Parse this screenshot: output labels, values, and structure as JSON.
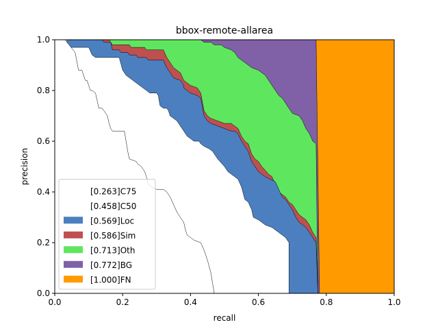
{
  "chart_data": {
    "type": "area",
    "title": "bbox-remote-allarea",
    "xlabel": "recall",
    "ylabel": "precision",
    "xlim": [
      0,
      1
    ],
    "ylim": [
      0,
      1
    ],
    "xticks": [
      "0.0",
      "0.2",
      "0.4",
      "0.6",
      "0.8",
      "1.0"
    ],
    "yticks": [
      "0.0",
      "0.2",
      "0.4",
      "0.6",
      "0.8",
      "1.0"
    ],
    "grid": false,
    "legend_position": "lower-left",
    "series": [
      {
        "name": "[0.263]C75",
        "color": "#ffffff",
        "points": [
          [
            0.0,
            1.0
          ],
          [
            0.03,
            1.0
          ],
          [
            0.06,
            0.95
          ],
          [
            0.07,
            0.88
          ],
          [
            0.08,
            0.88
          ],
          [
            0.09,
            0.84
          ],
          [
            0.095,
            0.84
          ],
          [
            0.105,
            0.8
          ],
          [
            0.11,
            0.8
          ],
          [
            0.12,
            0.79
          ],
          [
            0.125,
            0.76
          ],
          [
            0.13,
            0.73
          ],
          [
            0.135,
            0.73
          ],
          [
            0.14,
            0.73
          ],
          [
            0.145,
            0.72
          ],
          [
            0.15,
            0.71
          ],
          [
            0.155,
            0.7
          ],
          [
            0.16,
            0.67
          ],
          [
            0.165,
            0.65
          ],
          [
            0.17,
            0.64
          ],
          [
            0.205,
            0.64
          ],
          [
            0.21,
            0.6
          ],
          [
            0.215,
            0.56
          ],
          [
            0.22,
            0.53
          ],
          [
            0.24,
            0.52
          ],
          [
            0.245,
            0.51
          ],
          [
            0.255,
            0.5
          ],
          [
            0.265,
            0.48
          ],
          [
            0.27,
            0.46
          ],
          [
            0.275,
            0.43
          ],
          [
            0.285,
            0.42
          ],
          [
            0.3,
            0.41
          ],
          [
            0.32,
            0.41
          ],
          [
            0.33,
            0.4
          ],
          [
            0.34,
            0.38
          ],
          [
            0.35,
            0.35
          ],
          [
            0.36,
            0.32
          ],
          [
            0.37,
            0.3
          ],
          [
            0.38,
            0.28
          ],
          [
            0.385,
            0.25
          ],
          [
            0.39,
            0.23
          ],
          [
            0.41,
            0.21
          ],
          [
            0.43,
            0.2
          ],
          [
            0.44,
            0.17
          ],
          [
            0.45,
            0.13
          ],
          [
            0.46,
            0.08
          ],
          [
            0.465,
            0.04
          ],
          [
            0.47,
            0.0
          ]
        ]
      },
      {
        "name": "[0.458]C50",
        "color": "#ffffff",
        "points": [
          [
            0.0,
            1.0
          ],
          [
            0.035,
            1.0
          ],
          [
            0.04,
            0.97
          ],
          [
            0.1,
            0.97
          ],
          [
            0.11,
            0.94
          ],
          [
            0.12,
            0.93
          ],
          [
            0.19,
            0.93
          ],
          [
            0.2,
            0.88
          ],
          [
            0.21,
            0.86
          ],
          [
            0.22,
            0.85
          ],
          [
            0.23,
            0.84
          ],
          [
            0.24,
            0.83
          ],
          [
            0.25,
            0.82
          ],
          [
            0.26,
            0.81
          ],
          [
            0.27,
            0.8
          ],
          [
            0.28,
            0.79
          ],
          [
            0.3,
            0.79
          ],
          [
            0.305,
            0.78
          ],
          [
            0.31,
            0.74
          ],
          [
            0.32,
            0.73
          ],
          [
            0.33,
            0.73
          ],
          [
            0.335,
            0.72
          ],
          [
            0.34,
            0.7
          ],
          [
            0.36,
            0.68
          ],
          [
            0.37,
            0.66
          ],
          [
            0.38,
            0.64
          ],
          [
            0.39,
            0.62
          ],
          [
            0.4,
            0.61
          ],
          [
            0.41,
            0.6
          ],
          [
            0.425,
            0.6
          ],
          [
            0.43,
            0.59
          ],
          [
            0.44,
            0.58
          ],
          [
            0.455,
            0.57
          ],
          [
            0.465,
            0.56
          ],
          [
            0.47,
            0.55
          ],
          [
            0.48,
            0.53
          ],
          [
            0.5,
            0.5
          ],
          [
            0.51,
            0.48
          ],
          [
            0.52,
            0.47
          ],
          [
            0.53,
            0.46
          ],
          [
            0.54,
            0.45
          ],
          [
            0.55,
            0.42
          ],
          [
            0.56,
            0.37
          ],
          [
            0.57,
            0.36
          ],
          [
            0.58,
            0.33
          ],
          [
            0.585,
            0.3
          ],
          [
            0.6,
            0.29
          ],
          [
            0.61,
            0.28
          ],
          [
            0.62,
            0.27
          ],
          [
            0.64,
            0.26
          ],
          [
            0.66,
            0.24
          ],
          [
            0.68,
            0.22
          ],
          [
            0.69,
            0.2
          ],
          [
            0.69,
            0.0
          ]
        ]
      },
      {
        "name": "[0.569]Loc",
        "color": "#4c7fbf",
        "points": [
          [
            0.0,
            1.0
          ],
          [
            0.14,
            1.0
          ],
          [
            0.145,
            0.99
          ],
          [
            0.165,
            0.99
          ],
          [
            0.17,
            0.96
          ],
          [
            0.19,
            0.96
          ],
          [
            0.195,
            0.95
          ],
          [
            0.215,
            0.95
          ],
          [
            0.22,
            0.94
          ],
          [
            0.24,
            0.94
          ],
          [
            0.245,
            0.93
          ],
          [
            0.27,
            0.93
          ],
          [
            0.275,
            0.92
          ],
          [
            0.32,
            0.92
          ],
          [
            0.33,
            0.89
          ],
          [
            0.35,
            0.85
          ],
          [
            0.37,
            0.84
          ],
          [
            0.38,
            0.82
          ],
          [
            0.38,
            0.81
          ],
          [
            0.4,
            0.79
          ],
          [
            0.42,
            0.78
          ],
          [
            0.43,
            0.77
          ],
          [
            0.44,
            0.7
          ],
          [
            0.45,
            0.68
          ],
          [
            0.46,
            0.67
          ],
          [
            0.48,
            0.66
          ],
          [
            0.5,
            0.65
          ],
          [
            0.52,
            0.64
          ],
          [
            0.53,
            0.64
          ],
          [
            0.54,
            0.63
          ],
          [
            0.55,
            0.6
          ],
          [
            0.56,
            0.58
          ],
          [
            0.57,
            0.56
          ],
          [
            0.58,
            0.52
          ],
          [
            0.59,
            0.5
          ],
          [
            0.6,
            0.48
          ],
          [
            0.61,
            0.47
          ],
          [
            0.62,
            0.46
          ],
          [
            0.65,
            0.44
          ],
          [
            0.66,
            0.41
          ],
          [
            0.67,
            0.38
          ],
          [
            0.68,
            0.37
          ],
          [
            0.69,
            0.35
          ],
          [
            0.7,
            0.33
          ],
          [
            0.71,
            0.3
          ],
          [
            0.72,
            0.28
          ],
          [
            0.73,
            0.27
          ],
          [
            0.74,
            0.26
          ],
          [
            0.75,
            0.24
          ],
          [
            0.76,
            0.22
          ],
          [
            0.77,
            0.2
          ],
          [
            0.775,
            0.0
          ]
        ]
      },
      {
        "name": "[0.586]Sim",
        "color": "#bf5050",
        "points": [
          [
            0.0,
            1.0
          ],
          [
            0.16,
            1.0
          ],
          [
            0.17,
            0.98
          ],
          [
            0.22,
            0.98
          ],
          [
            0.225,
            0.97
          ],
          [
            0.265,
            0.97
          ],
          [
            0.27,
            0.96
          ],
          [
            0.32,
            0.96
          ],
          [
            0.33,
            0.93
          ],
          [
            0.35,
            0.89
          ],
          [
            0.37,
            0.87
          ],
          [
            0.38,
            0.84
          ],
          [
            0.4,
            0.82
          ],
          [
            0.42,
            0.81
          ],
          [
            0.43,
            0.79
          ],
          [
            0.44,
            0.72
          ],
          [
            0.45,
            0.7
          ],
          [
            0.46,
            0.69
          ],
          [
            0.48,
            0.68
          ],
          [
            0.5,
            0.67
          ],
          [
            0.52,
            0.67
          ],
          [
            0.54,
            0.65
          ],
          [
            0.55,
            0.62
          ],
          [
            0.56,
            0.6
          ],
          [
            0.57,
            0.59
          ],
          [
            0.58,
            0.55
          ],
          [
            0.59,
            0.53
          ],
          [
            0.6,
            0.52
          ],
          [
            0.61,
            0.5
          ],
          [
            0.63,
            0.47
          ],
          [
            0.64,
            0.46
          ],
          [
            0.65,
            0.43
          ],
          [
            0.66,
            0.4
          ],
          [
            0.67,
            0.39
          ],
          [
            0.68,
            0.38
          ],
          [
            0.69,
            0.36
          ],
          [
            0.7,
            0.35
          ],
          [
            0.71,
            0.33
          ],
          [
            0.72,
            0.31
          ],
          [
            0.73,
            0.3
          ],
          [
            0.74,
            0.29
          ],
          [
            0.75,
            0.27
          ],
          [
            0.76,
            0.24
          ],
          [
            0.77,
            0.22
          ],
          [
            0.775,
            0.0
          ]
        ]
      },
      {
        "name": "[0.713]Oth",
        "color": "#5fe65f",
        "points": [
          [
            0.0,
            1.0
          ],
          [
            0.43,
            1.0
          ],
          [
            0.44,
            0.99
          ],
          [
            0.46,
            0.99
          ],
          [
            0.47,
            0.98
          ],
          [
            0.49,
            0.98
          ],
          [
            0.5,
            0.97
          ],
          [
            0.52,
            0.96
          ],
          [
            0.53,
            0.95
          ],
          [
            0.54,
            0.93
          ],
          [
            0.55,
            0.92
          ],
          [
            0.56,
            0.91
          ],
          [
            0.57,
            0.9
          ],
          [
            0.58,
            0.89
          ],
          [
            0.6,
            0.88
          ],
          [
            0.62,
            0.86
          ],
          [
            0.63,
            0.84
          ],
          [
            0.64,
            0.82
          ],
          [
            0.65,
            0.8
          ],
          [
            0.66,
            0.78
          ],
          [
            0.67,
            0.77
          ],
          [
            0.68,
            0.75
          ],
          [
            0.69,
            0.73
          ],
          [
            0.7,
            0.71
          ],
          [
            0.72,
            0.7
          ],
          [
            0.73,
            0.68
          ],
          [
            0.74,
            0.65
          ],
          [
            0.75,
            0.63
          ],
          [
            0.76,
            0.6
          ],
          [
            0.77,
            0.59
          ],
          [
            0.775,
            0.0
          ]
        ]
      },
      {
        "name": "[0.772]BG",
        "color": "#8060a6",
        "points": [
          [
            0.0,
            1.0
          ],
          [
            0.77,
            1.0
          ],
          [
            0.775,
            0.5
          ],
          [
            0.78,
            0.0
          ]
        ]
      },
      {
        "name": "[1.000]FN",
        "color": "#ff9a00",
        "points": [
          [
            0.0,
            1.0
          ],
          [
            1.0,
            1.0
          ],
          [
            1.0,
            0.0
          ]
        ]
      }
    ]
  }
}
